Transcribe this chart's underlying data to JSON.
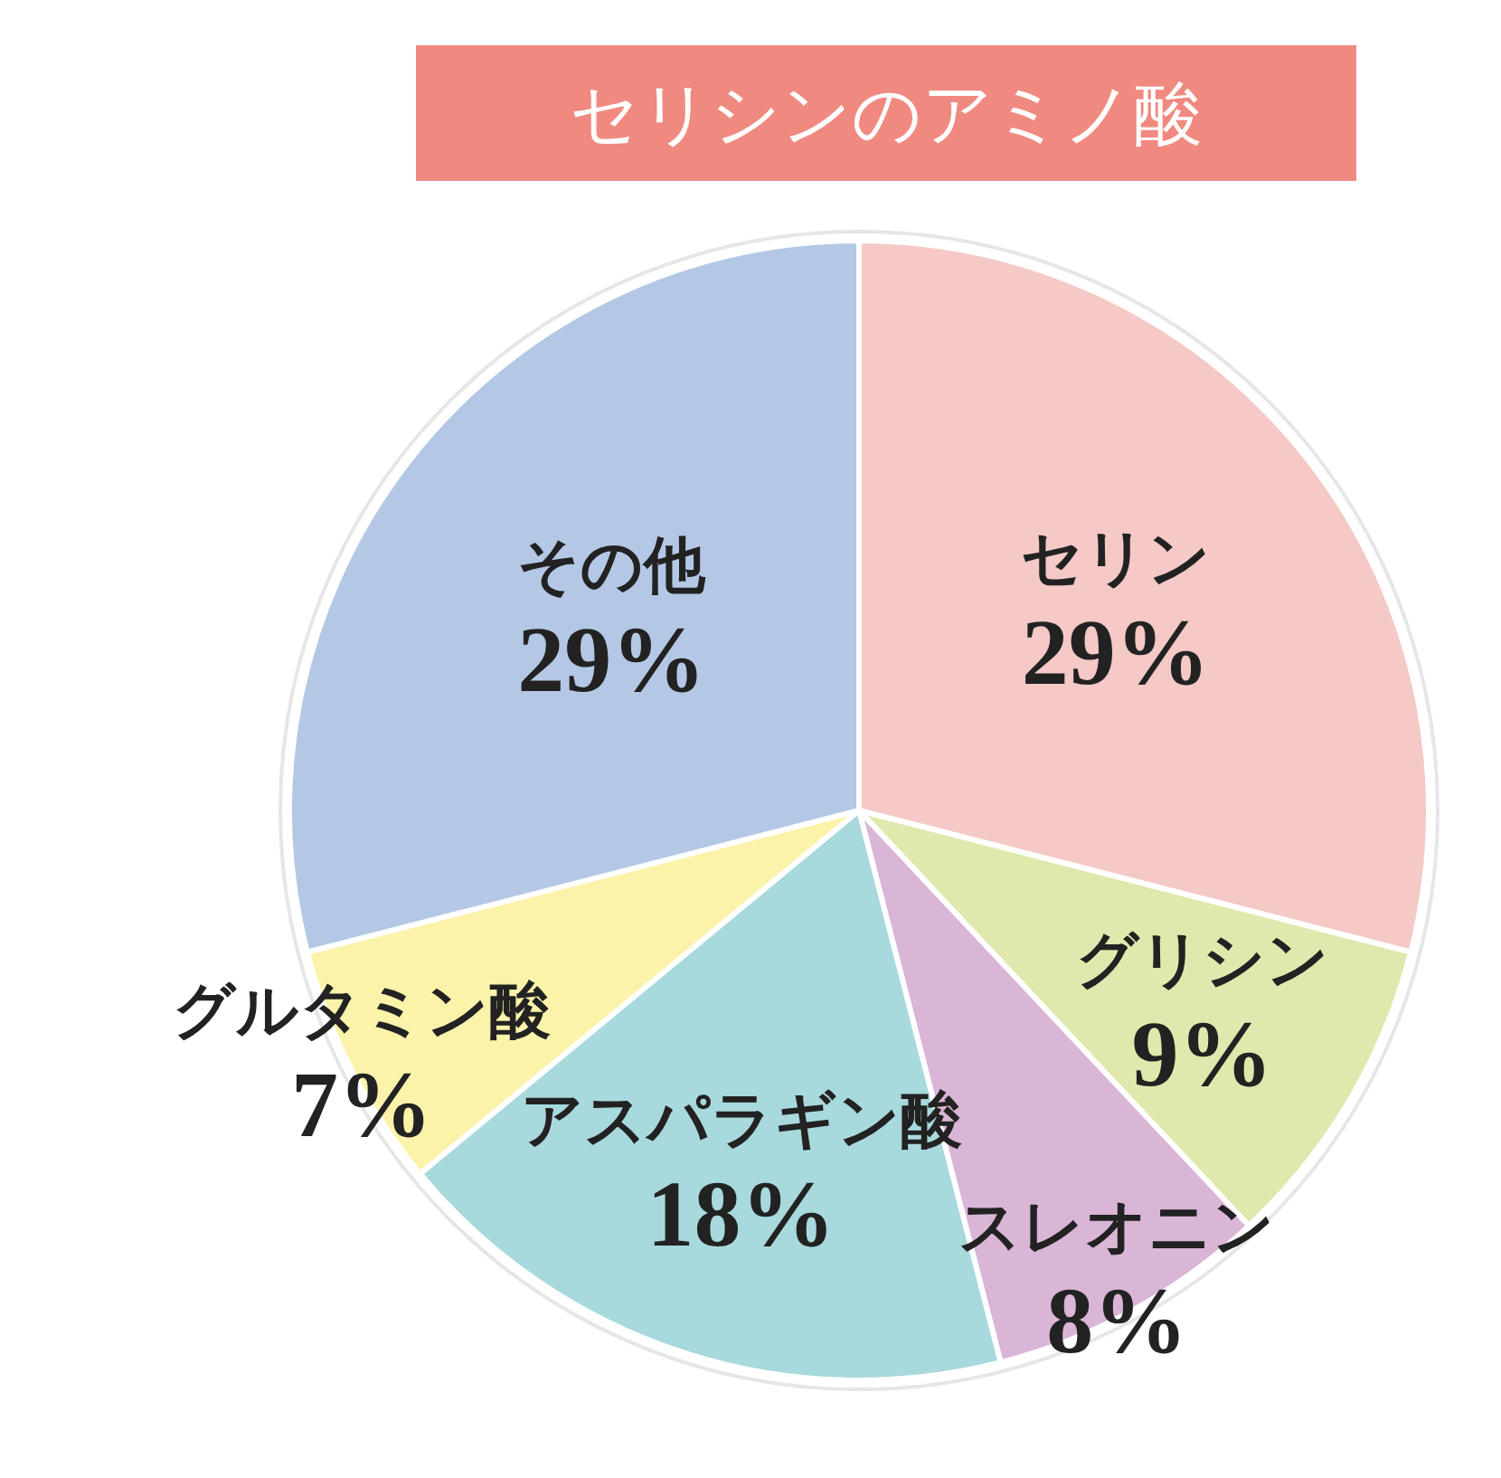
{
  "chart_data": {
    "type": "pie",
    "title": "セリシンのアミノ酸",
    "categories": [
      "セリン",
      "グリシン",
      "スレオニン",
      "アスパラギン酸",
      "グルタミン酸",
      "その他"
    ],
    "values": [
      29,
      9,
      8,
      18,
      7,
      29
    ],
    "value_labels": [
      "29%",
      "9%",
      "8%",
      "18%",
      "7%",
      "29%"
    ],
    "colors": [
      "#f5c9c6",
      "#e0e8ad",
      "#d9b5d6",
      "#a8d9dc",
      "#fbf3a9",
      "#b4c8e6"
    ],
    "legend": false
  }
}
